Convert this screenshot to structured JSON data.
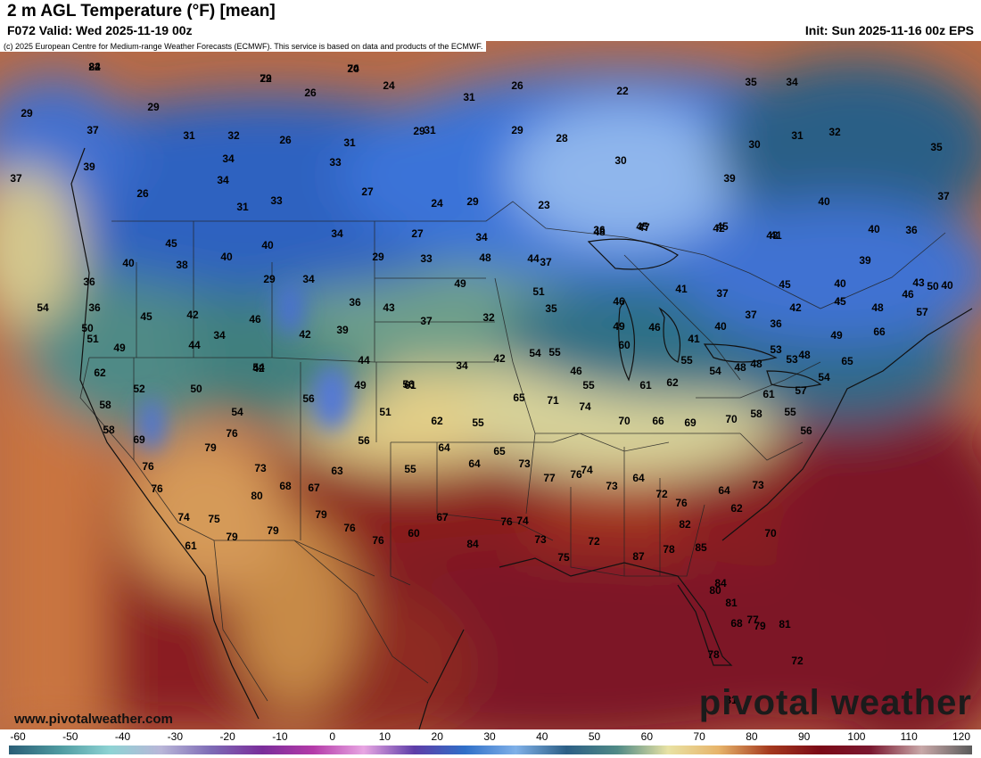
{
  "header": {
    "title": "2 m AGL Temperature (°F) [mean]",
    "valid": "F072 Valid: Wed 2025-11-19 00z",
    "init": "Init: Sun 2025-11-16 00z EPS"
  },
  "copyright": "(c) 2025 European Centre for Medium-range Weather Forecasts (ECMWF). This service is based on data and products of the ECMWF.",
  "footer": {
    "website": "www.pivotalweather.com",
    "brand": "pivotal weather"
  },
  "legend": {
    "ticks": [
      "-60",
      "-50",
      "-40",
      "-30",
      "-20",
      "-10",
      "0",
      "10",
      "20",
      "30",
      "40",
      "50",
      "60",
      "70",
      "80",
      "90",
      "100",
      "110",
      "120"
    ],
    "range": [
      -60,
      120
    ],
    "colors": [
      "#2a5d76",
      "#4e9aa0",
      "#8ed3d4",
      "#b9b6d8",
      "#7d6ab5",
      "#7a2d9a",
      "#b43aa8",
      "#e8a6e3",
      "#5e3da8",
      "#2f6fc8",
      "#7fb0e8",
      "#2c5f86",
      "#4f8a86",
      "#e8e2a4",
      "#e7b46a",
      "#a53a1e",
      "#7a0a16",
      "#7a1830",
      "#c9a8a8",
      "#5a5a5a"
    ]
  },
  "map": {
    "colors": {
      "ocean_pacific": "#c4663c",
      "ocean_gulf": "#7d1226",
      "cold": "#3f6fd0",
      "cool": "#3f7f8a",
      "mild": "#d9d39a",
      "warm": "#c37a3d",
      "hot": "#8a1a1e"
    },
    "temperature_labels": [
      "24",
      "20",
      "22",
      "24",
      "26",
      "26",
      "22",
      "35",
      "34",
      "29",
      "29",
      "31",
      "31",
      "29",
      "28",
      "31",
      "32",
      "26",
      "31",
      "33",
      "29",
      "30",
      "31",
      "32",
      "35",
      "37",
      "34",
      "34",
      "33",
      "27",
      "24",
      "29",
      "23",
      "30",
      "39",
      "40",
      "37",
      "39",
      "37",
      "26",
      "31",
      "34",
      "27",
      "34",
      "37",
      "36",
      "45",
      "42",
      "43",
      "40",
      "36",
      "45",
      "40",
      "40",
      "29",
      "33",
      "48",
      "44",
      "48",
      "47",
      "45",
      "41",
      "39",
      "43",
      "40",
      "38",
      "29",
      "34",
      "36",
      "43",
      "49",
      "51",
      "46",
      "41",
      "37",
      "45",
      "40",
      "40",
      "36",
      "36",
      "45",
      "42",
      "34",
      "46",
      "42",
      "39",
      "37",
      "32",
      "35",
      "49",
      "46",
      "41",
      "40",
      "37",
      "36",
      "42",
      "45",
      "49",
      "48",
      "46",
      "57",
      "50",
      "51",
      "54",
      "49",
      "44",
      "42",
      "44",
      "56",
      "34",
      "42",
      "54",
      "55",
      "46",
      "55",
      "60",
      "61",
      "62",
      "55",
      "54",
      "48",
      "48",
      "53",
      "53",
      "48",
      "54",
      "65",
      "66",
      "50",
      "62",
      "54",
      "52",
      "50",
      "54",
      "56",
      "49",
      "51",
      "61",
      "62",
      "55",
      "65",
      "71",
      "74",
      "70",
      "66",
      "69",
      "70",
      "58",
      "61",
      "55",
      "57",
      "56",
      "58",
      "58",
      "69",
      "76",
      "76",
      "79",
      "76",
      "73",
      "68",
      "67",
      "63",
      "56",
      "55",
      "64",
      "64",
      "65",
      "73",
      "77",
      "76",
      "74",
      "73",
      "64",
      "72",
      "76",
      "64",
      "62",
      "73",
      "70",
      "74",
      "61",
      "75",
      "79",
      "80",
      "79",
      "79",
      "76",
      "76",
      "60",
      "67",
      "84",
      "76",
      "74",
      "73",
      "75",
      "72",
      "87",
      "78",
      "82",
      "85",
      "84",
      "81",
      "77",
      "80",
      "79",
      "68",
      "78",
      "81",
      "81",
      "72",
      "82",
      "74",
      "79"
    ]
  }
}
